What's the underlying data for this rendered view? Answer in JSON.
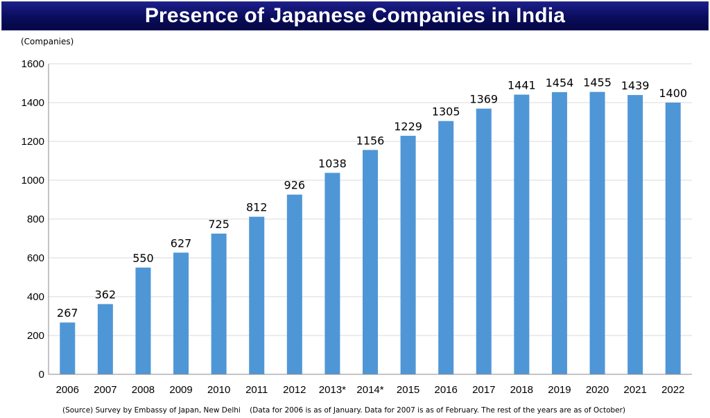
{
  "title": "Presence of Japanese Companies in India",
  "unit_label": "(Companies)",
  "source_note": "(Source) Survey by Embassy of Japan, New Delhi    (Data for 2006 is as of January. Data for 2007 is as of February. The rest of the years are as of October)",
  "colors": {
    "bar": "#4f96d6",
    "gridline": "#d9d9d9",
    "axis": "#888888",
    "banner": "#0b0d5e"
  },
  "chart_data": {
    "type": "bar",
    "title": "Presence of Japanese Companies in India",
    "ylabel": "(Companies)",
    "xlabel": "",
    "categories": [
      "2006",
      "2007",
      "2008",
      "2009",
      "2010",
      "2011",
      "2012",
      "2013*",
      "2014*",
      "2015",
      "2016",
      "2017",
      "2018",
      "2019",
      "2020",
      "2021",
      "2022"
    ],
    "values": [
      267,
      362,
      550,
      627,
      725,
      812,
      926,
      1038,
      1156,
      1229,
      1305,
      1369,
      1441,
      1454,
      1455,
      1439,
      1400
    ],
    "ylim": [
      0,
      1600
    ],
    "yticks": [
      0,
      200,
      400,
      600,
      800,
      1000,
      1200,
      1400,
      1600
    ],
    "grid": true,
    "legend": "none"
  }
}
